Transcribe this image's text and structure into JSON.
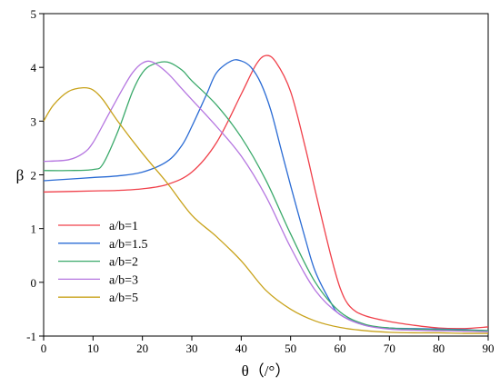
{
  "chart_data": {
    "type": "line",
    "title": "",
    "xlabel": "θ（/°）",
    "ylabel": "β",
    "xlim": [
      0,
      90
    ],
    "ylim": [
      -1,
      5
    ],
    "xticks": [
      0,
      10,
      20,
      30,
      40,
      50,
      60,
      70,
      80,
      90
    ],
    "yticks": [
      -1,
      0,
      1,
      2,
      3,
      4,
      5
    ],
    "grid": false,
    "legend_position": "center-left",
    "series": [
      {
        "name": "a/b=1",
        "color": "#f0404a",
        "x": [
          0,
          10,
          15,
          20,
          25,
          30,
          35,
          40,
          43,
          45,
          47,
          50,
          53,
          55,
          58,
          60,
          62,
          65,
          70,
          75,
          80,
          85,
          90
        ],
        "y": [
          1.68,
          1.7,
          1.71,
          1.74,
          1.82,
          2.05,
          2.6,
          3.5,
          4.05,
          4.22,
          4.1,
          3.55,
          2.5,
          1.7,
          0.55,
          -0.1,
          -0.45,
          -0.62,
          -0.73,
          -0.8,
          -0.85,
          -0.86,
          -0.83
        ]
      },
      {
        "name": "a/b=1.5",
        "color": "#2a6bd4",
        "x": [
          0,
          5,
          10,
          15,
          20,
          25,
          28,
          30,
          33,
          35,
          38,
          40,
          42,
          44,
          46,
          48,
          50,
          53,
          55,
          58,
          60,
          65,
          70,
          75,
          80,
          85,
          90
        ],
        "y": [
          1.89,
          1.92,
          1.95,
          1.98,
          2.05,
          2.25,
          2.55,
          2.9,
          3.5,
          3.9,
          4.12,
          4.12,
          4.0,
          3.7,
          3.2,
          2.5,
          1.8,
          0.8,
          0.2,
          -0.35,
          -0.6,
          -0.8,
          -0.85,
          -0.86,
          -0.87,
          -0.88,
          -0.9
        ]
      },
      {
        "name": "a/b=2",
        "color": "#3aa96a",
        "x": [
          0,
          5,
          10,
          12,
          15,
          18,
          20,
          22,
          25,
          28,
          30,
          35,
          40,
          45,
          50,
          55,
          60,
          65,
          70,
          75,
          80,
          85,
          90
        ],
        "y": [
          2.08,
          2.08,
          2.1,
          2.2,
          2.8,
          3.55,
          3.9,
          4.05,
          4.1,
          3.95,
          3.75,
          3.3,
          2.7,
          1.9,
          0.9,
          0.0,
          -0.55,
          -0.78,
          -0.85,
          -0.87,
          -0.88,
          -0.89,
          -0.9
        ]
      },
      {
        "name": "a/b=3",
        "color": "#b576e0",
        "x": [
          0,
          5,
          8,
          10,
          13,
          16,
          18,
          20,
          22,
          25,
          28,
          30,
          35,
          40,
          45,
          50,
          55,
          60,
          65,
          70,
          75,
          80,
          85,
          90
        ],
        "y": [
          2.25,
          2.28,
          2.4,
          2.6,
          3.1,
          3.6,
          3.9,
          4.08,
          4.1,
          3.9,
          3.6,
          3.4,
          2.9,
          2.35,
          1.6,
          0.65,
          -0.15,
          -0.6,
          -0.8,
          -0.87,
          -0.89,
          -0.9,
          -0.91,
          -0.92
        ]
      },
      {
        "name": "a/b=5",
        "color": "#c8a21a",
        "x": [
          0,
          2,
          5,
          8,
          10,
          12,
          15,
          20,
          25,
          30,
          35,
          40,
          45,
          50,
          55,
          60,
          65,
          70,
          75,
          80,
          85,
          90
        ],
        "y": [
          3.0,
          3.3,
          3.55,
          3.62,
          3.58,
          3.4,
          3.0,
          2.4,
          1.85,
          1.25,
          0.85,
          0.4,
          -0.15,
          -0.5,
          -0.72,
          -0.84,
          -0.9,
          -0.93,
          -0.94,
          -0.94,
          -0.95,
          -0.95
        ]
      }
    ]
  }
}
